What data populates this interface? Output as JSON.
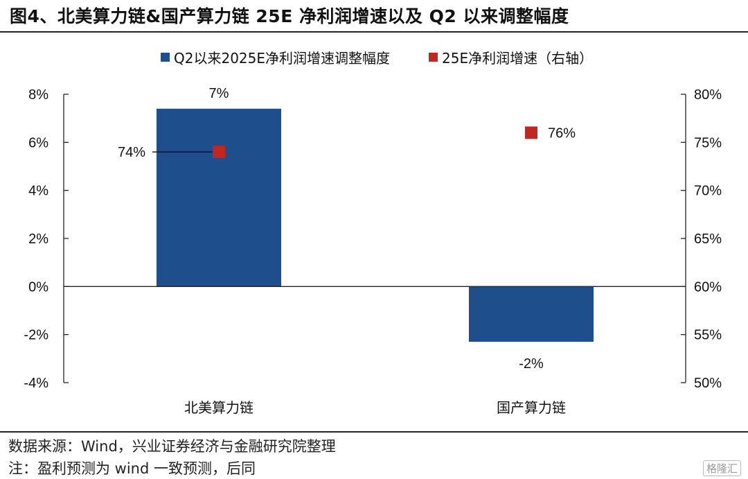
{
  "title": "图4、北美算力链&国产算力链 25E 净利润增速以及 Q2 以来调整幅度",
  "footer": {
    "source": "数据来源：Wind，兴业证券经济与金融研究院整理",
    "note": "注：盈利预测为 wind 一致预测，后同"
  },
  "watermark": "格隆汇",
  "colors": {
    "bar": "#1f4e8c",
    "marker": "#c0281f",
    "axis": "#222222"
  },
  "chart_data": {
    "type": "bar",
    "categories": [
      "北美算力链",
      "国产算力链"
    ],
    "series": [
      {
        "name": "Q2以来2025E净利润增速调整幅度",
        "values": [
          7.4,
          -2.3
        ],
        "labels": [
          "7%",
          "-2%"
        ],
        "axis": "left",
        "kind": "bar"
      },
      {
        "name": "25E净利润增速（右轴）",
        "values": [
          74,
          76
        ],
        "labels": [
          "74%",
          "76%"
        ],
        "axis": "right",
        "kind": "marker"
      }
    ],
    "ylim_left": [
      -4,
      8
    ],
    "yticks_left": [
      "-4%",
      "-2%",
      "0%",
      "2%",
      "4%",
      "6%",
      "8%"
    ],
    "ylim_right": [
      50,
      80
    ],
    "yticks_right": [
      "50%",
      "55%",
      "60%",
      "65%",
      "70%",
      "75%",
      "80%"
    ],
    "legend_position": "top-center",
    "grid": false
  }
}
